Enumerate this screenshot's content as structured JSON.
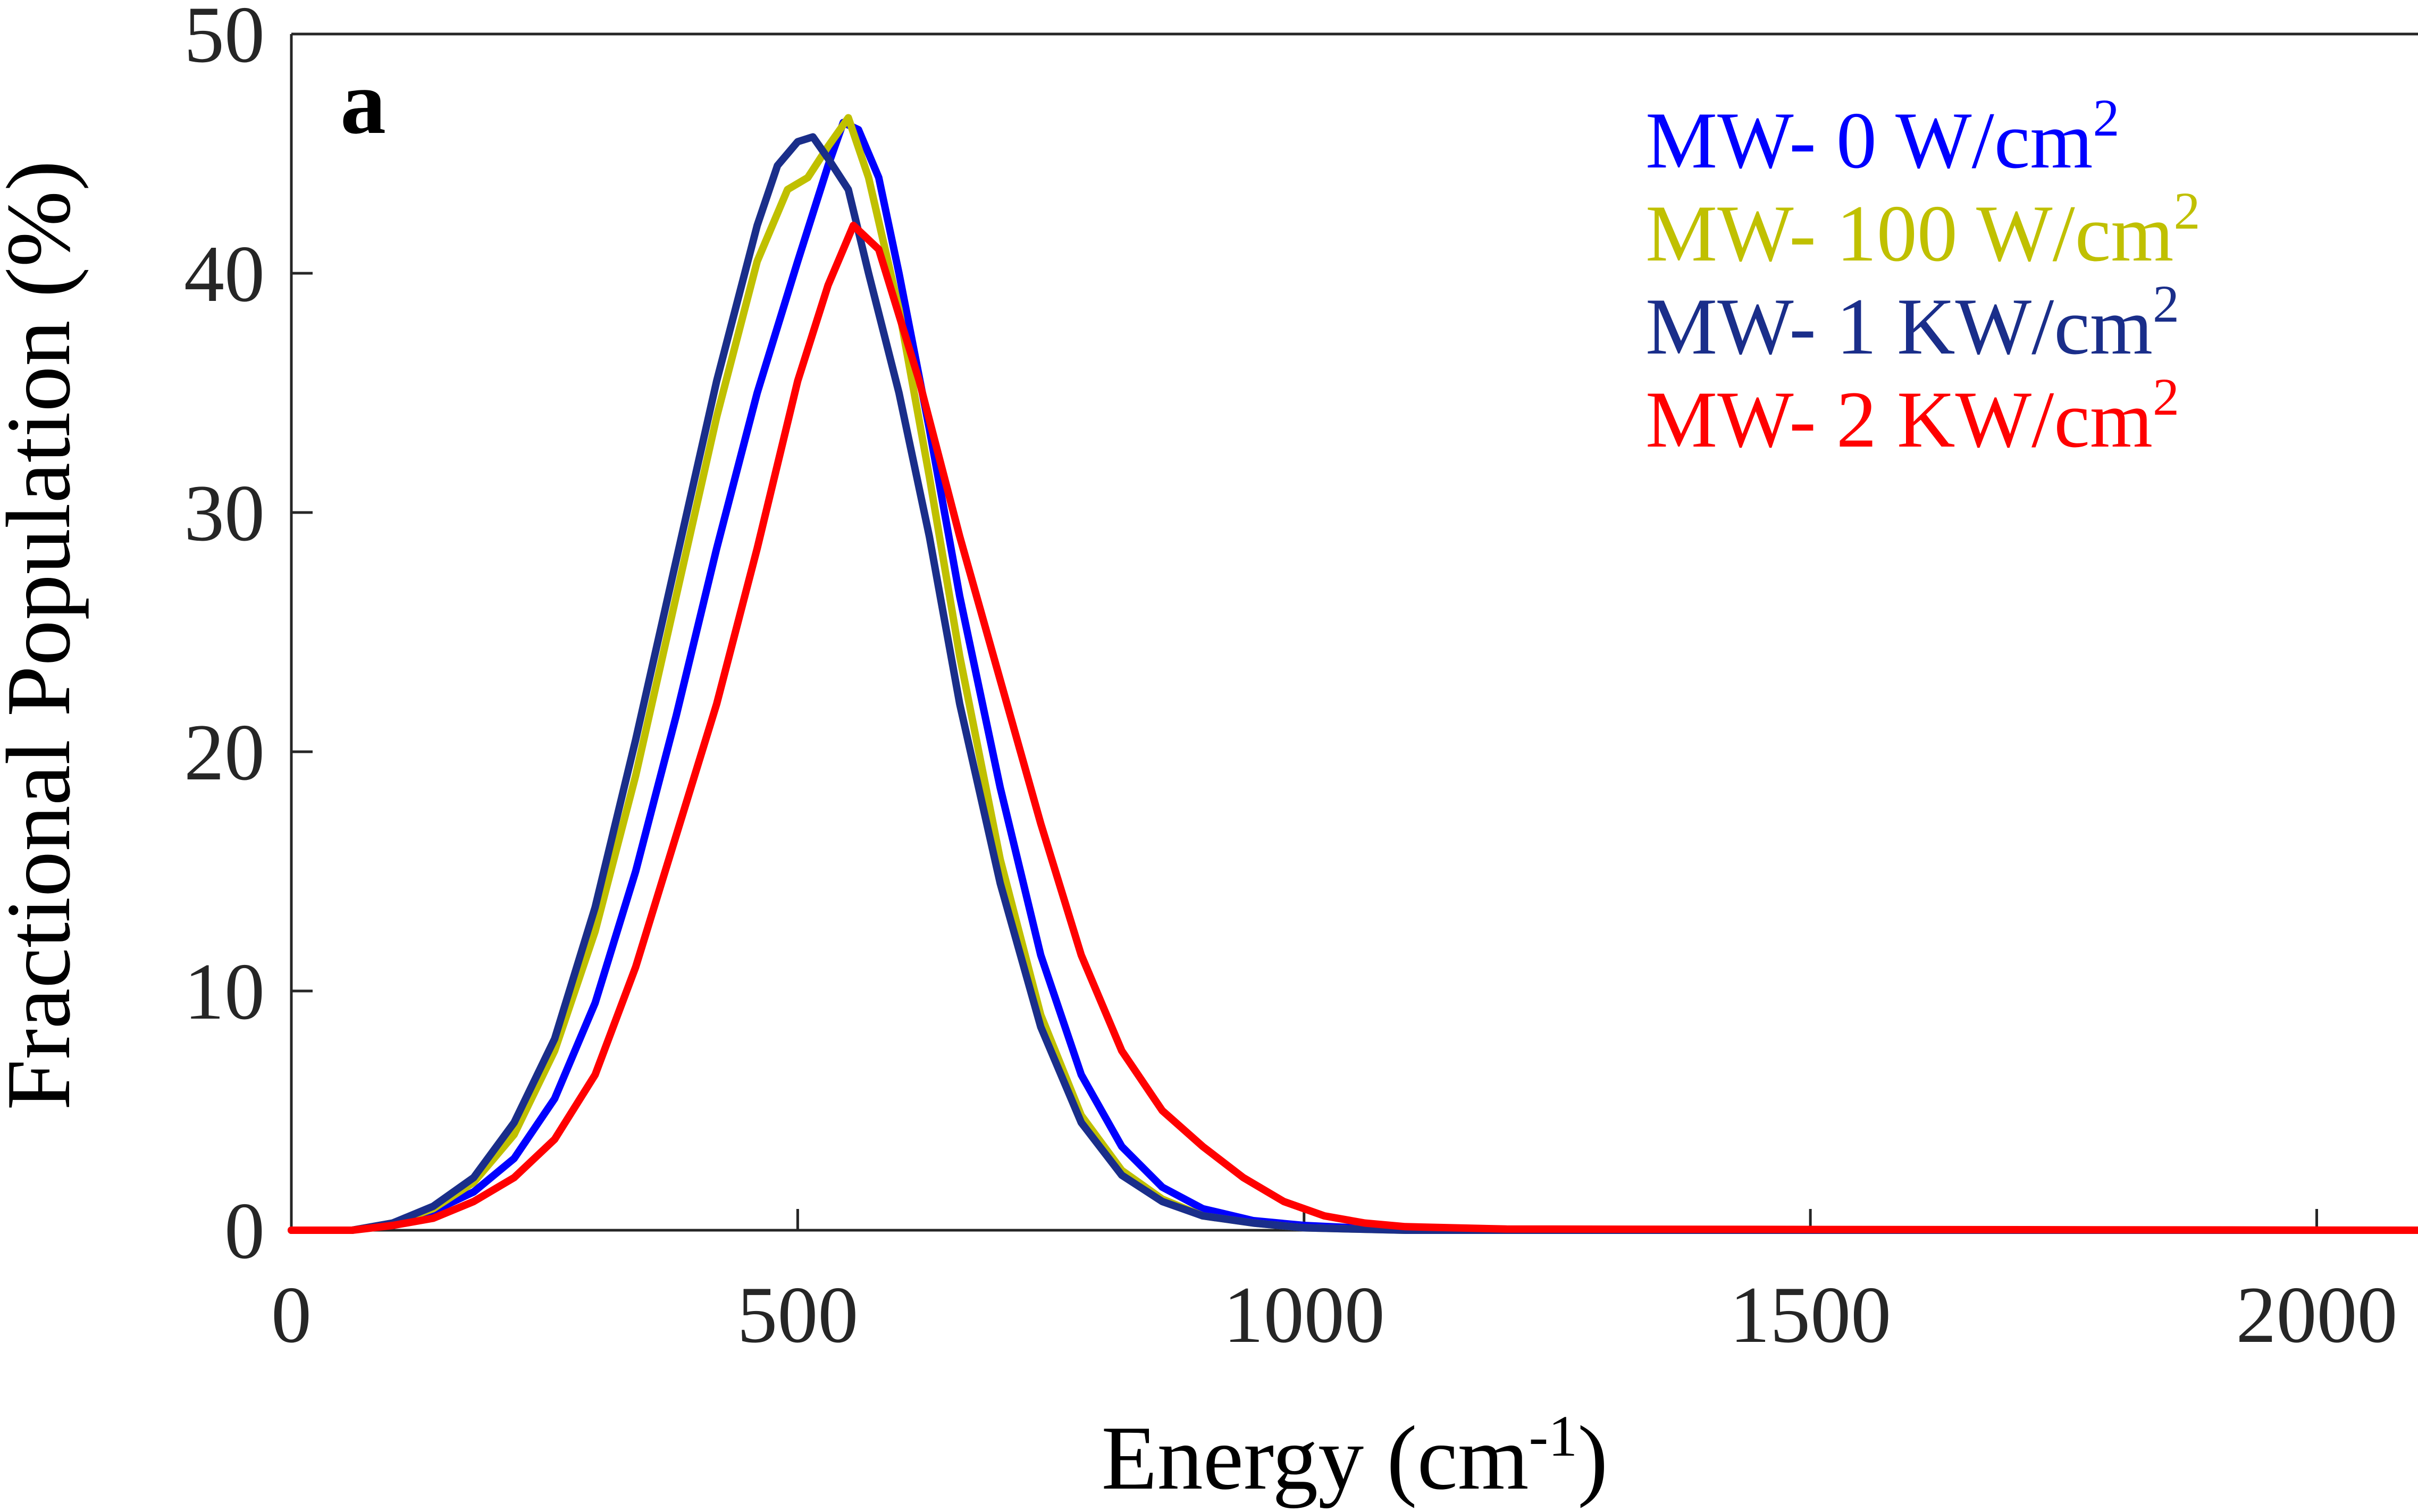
{
  "chart_data": {
    "type": "line",
    "panel_label": "a",
    "title": "",
    "xlabel": {
      "main": "Energy (cm",
      "sup": "-1",
      "close": ")"
    },
    "ylabel": "Fractional Population (%)",
    "xlim": [
      0,
      2100
    ],
    "ylim": [
      0,
      50
    ],
    "xticks": [
      0,
      500,
      1000,
      1500,
      2000
    ],
    "yticks": [
      0,
      10,
      20,
      30,
      40,
      50
    ],
    "grid": false,
    "legend_position": "top-right",
    "series": [
      {
        "name": "MW- 0 W/cm2",
        "label": "MW- 0 W/cm",
        "sup": "2",
        "color": "#0000ff",
        "x": [
          0,
          60,
          100,
          140,
          180,
          220,
          260,
          300,
          340,
          380,
          420,
          460,
          500,
          530,
          545,
          560,
          580,
          600,
          630,
          660,
          700,
          740,
          780,
          820,
          860,
          900,
          950,
          1000,
          1050,
          1100,
          1200,
          2100
        ],
        "y": [
          0,
          0,
          0.3,
          0.8,
          1.6,
          3.0,
          5.5,
          9.5,
          15.0,
          21.5,
          28.5,
          35.0,
          40.5,
          44.5,
          46.3,
          46.0,
          44.0,
          40.0,
          33.5,
          26.5,
          18.5,
          11.5,
          6.5,
          3.5,
          1.8,
          0.9,
          0.4,
          0.2,
          0.1,
          0.05,
          0,
          0
        ]
      },
      {
        "name": "MW- 100 W/cm2",
        "label": "MW- 100 W/cm",
        "sup": "2",
        "color": "#c0c000",
        "x": [
          0,
          60,
          100,
          140,
          180,
          220,
          260,
          300,
          340,
          380,
          420,
          460,
          490,
          510,
          530,
          550,
          570,
          600,
          630,
          660,
          700,
          740,
          780,
          820,
          860,
          900,
          950,
          1000,
          1050,
          1100,
          1200,
          2100
        ],
        "y": [
          0,
          0,
          0.3,
          0.9,
          2.0,
          4.0,
          7.5,
          12.5,
          19.0,
          26.5,
          34.0,
          40.5,
          43.5,
          44.0,
          45.3,
          46.5,
          44.0,
          38.5,
          31.5,
          24.0,
          15.5,
          9.0,
          4.8,
          2.5,
          1.3,
          0.6,
          0.3,
          0.1,
          0.05,
          0,
          0,
          0
        ]
      },
      {
        "name": "MW- 1 KW/cm2",
        "label": "MW- 1 KW/cm",
        "sup": "2",
        "color": "#1a2e8a",
        "x": [
          0,
          60,
          100,
          140,
          180,
          220,
          260,
          300,
          340,
          380,
          420,
          460,
          480,
          500,
          515,
          530,
          550,
          570,
          600,
          630,
          660,
          700,
          740,
          780,
          820,
          860,
          900,
          950,
          1000,
          1050,
          1100,
          2100
        ],
        "y": [
          0,
          0,
          0.3,
          1.0,
          2.2,
          4.5,
          8.0,
          13.5,
          20.5,
          28.0,
          35.5,
          42.0,
          44.5,
          45.5,
          45.7,
          44.8,
          43.5,
          40.0,
          35.0,
          29.0,
          22.0,
          14.5,
          8.5,
          4.5,
          2.3,
          1.2,
          0.6,
          0.3,
          0.1,
          0.05,
          0,
          0
        ]
      },
      {
        "name": "MW- 2 KW/cm2",
        "label": "MW- 2 KW/cm",
        "sup": "2",
        "color": "#ff0000",
        "x": [
          0,
          60,
          100,
          140,
          180,
          220,
          260,
          300,
          340,
          380,
          420,
          460,
          500,
          530,
          545,
          555,
          580,
          620,
          660,
          700,
          740,
          780,
          820,
          860,
          900,
          940,
          980,
          1020,
          1060,
          1100,
          1200,
          2100
        ],
        "y": [
          0,
          0,
          0.2,
          0.5,
          1.2,
          2.2,
          3.8,
          6.5,
          11.0,
          16.5,
          22.0,
          28.5,
          35.5,
          39.5,
          41.0,
          42.0,
          41.0,
          35.5,
          29.0,
          23.0,
          17.0,
          11.5,
          7.5,
          5.0,
          3.5,
          2.2,
          1.2,
          0.6,
          0.3,
          0.15,
          0.05,
          0
        ]
      }
    ]
  }
}
